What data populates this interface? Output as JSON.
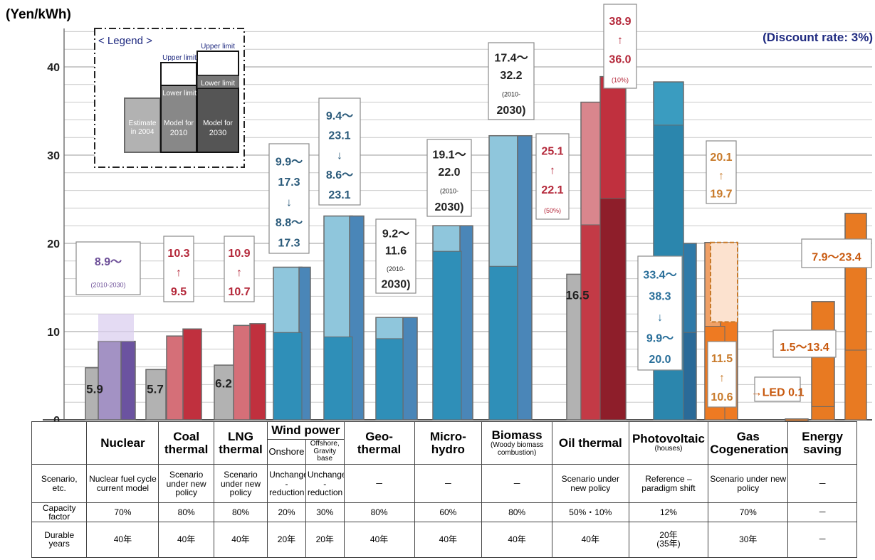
{
  "chart_data": {
    "type": "bar",
    "ylabel": "(Yen/kWh)",
    "annotation": "(Discount rate: 3%)",
    "ylim": [
      0,
      45
    ],
    "yticks": [
      0,
      10,
      20,
      30,
      40
    ],
    "legend": {
      "title": "< Legend >",
      "upper": "Upper limit",
      "lower": "Lower limit",
      "estimate": "Estimate in 2004",
      "model2010": "Model for 2010",
      "model2030": "Model for 2030"
    },
    "bars": [
      {
        "tech": "Nuclear",
        "estimate_2004": 5.9,
        "model_2010": 8.9,
        "model_2030": 8.9
      },
      {
        "tech": "Coal thermal",
        "estimate_2004": 5.7,
        "model_2010": [
          9.5
        ],
        "model_2030": [
          10.3
        ]
      },
      {
        "tech": "LNG thermal",
        "estimate_2004": 6.2,
        "model_2010": [
          10.7
        ],
        "model_2030": [
          10.9
        ]
      },
      {
        "tech": "Wind power Onshore",
        "model_2010": [
          9.9,
          17.3
        ],
        "model_2030": [
          8.8,
          17.3
        ]
      },
      {
        "tech": "Wind power Offshore",
        "model_2010": [
          9.4,
          23.1
        ],
        "model_2030": [
          8.6,
          23.1
        ]
      },
      {
        "tech": "Geothermal",
        "model_2010": [
          9.2,
          11.6
        ],
        "model_2030": [
          9.2,
          11.6
        ]
      },
      {
        "tech": "Micro-hydro",
        "model_2010": [
          19.1,
          22.0
        ],
        "model_2030": [
          19.1,
          22.0
        ]
      },
      {
        "tech": "Biomass",
        "model_2010": [
          17.4,
          32.2
        ],
        "model_2030": [
          17.4,
          32.2
        ]
      },
      {
        "tech": "Oil thermal",
        "estimate_2004": 16.5,
        "model_2010": [
          22.1,
          36.0
        ],
        "model_2030": [
          25.1,
          38.9
        ]
      },
      {
        "tech": "Photovoltaic",
        "model_2010": [
          33.4,
          38.3
        ],
        "model_2030": [
          9.9,
          20.0
        ]
      },
      {
        "tech": "Gas Cogeneration",
        "model_2010": [
          10.6,
          19.7
        ],
        "model_2030": [
          11.5,
          20.1
        ]
      },
      {
        "tech": "Energy saving",
        "values": [
          0.1,
          1.5,
          13.4,
          7.9,
          23.4
        ]
      }
    ],
    "value_labels": [
      {
        "key": "nuc",
        "lines": [
          "8.9～",
          "(2010-2030)"
        ],
        "color": "#6d4f98"
      },
      {
        "key": "coal",
        "lines": [
          "10.3",
          "↑",
          "9.5"
        ],
        "color": "#b4283a"
      },
      {
        "key": "lng",
        "lines": [
          "10.9",
          "↑",
          "10.7"
        ],
        "color": "#b4283a"
      },
      {
        "key": "wind1",
        "lines": [
          "9.9～",
          "17.3",
          "↓",
          "8.8～",
          "17.3"
        ],
        "color": "#2a5a7a"
      },
      {
        "key": "wind2",
        "lines": [
          "9.4～",
          "23.1",
          "↓",
          "8.6～",
          "23.1"
        ],
        "color": "#2a5a7a"
      },
      {
        "key": "geo",
        "lines": [
          "9.2～",
          "11.6",
          "(2010-",
          "2030)"
        ],
        "color": "#222222"
      },
      {
        "key": "hydro",
        "lines": [
          "19.1～",
          "22.0",
          "(2010-",
          "2030)"
        ],
        "color": "#222222"
      },
      {
        "key": "bio",
        "lines": [
          "17.4～",
          "32.2",
          "(2010-",
          "2030)"
        ],
        "color": "#222222"
      },
      {
        "key": "oil1",
        "lines": [
          "25.1",
          "↑",
          "22.1",
          "(50%)"
        ],
        "color": "#b4283a"
      },
      {
        "key": "oil2",
        "lines": [
          "38.9",
          "↑",
          "36.0",
          "(10%)"
        ],
        "color": "#b4283a"
      },
      {
        "key": "pv",
        "lines": [
          "33.4～",
          "38.3",
          "↓",
          "9.9～",
          "20.0"
        ],
        "color": "#2a6f9a"
      },
      {
        "key": "gas1",
        "lines": [
          "20.1",
          "↑",
          "19.7"
        ],
        "color": "#c87a2a"
      },
      {
        "key": "gas2",
        "lines": [
          "11.5",
          "↑",
          "10.6"
        ],
        "color": "#c87a2a"
      },
      {
        "key": "es1",
        "lines": [
          "→LED 0.1"
        ],
        "color": "#c85a10"
      },
      {
        "key": "es2",
        "lines": [
          "1.5～13.4"
        ],
        "color": "#c85a10"
      },
      {
        "key": "es3",
        "lines": [
          "7.9～23.4"
        ],
        "color": "#c85a10"
      },
      {
        "key": "v59",
        "lines": [
          "5.9"
        ],
        "color": "#222222"
      },
      {
        "key": "v57",
        "lines": [
          "5.7"
        ],
        "color": "#222222"
      },
      {
        "key": "v62",
        "lines": [
          "6.2"
        ],
        "color": "#222222"
      },
      {
        "key": "v165",
        "lines": [
          "16.5"
        ],
        "color": "#222222"
      }
    ]
  },
  "table": {
    "headers": {
      "nuclear": "Nuclear",
      "coal": "Coal thermal",
      "lng": "LNG thermal",
      "wind": "Wind power",
      "onshore": "Onshore",
      "offshore": "Offshore, Gravity base",
      "geo": "Geo-thermal",
      "hydro": "Micro-hydro",
      "biomass": "Biomass",
      "biomass_sub": "(Woody biomass combustion)",
      "oil": "Oil thermal",
      "pv": "Photovoltaic",
      "pv_sub": "(houses)",
      "gas": "Gas Cogeneration",
      "es": "Energy saving"
    },
    "scenario_label": "Scenario, etc.",
    "scenario": [
      "Nuclear fuel cycle current model",
      "Scenario under new policy",
      "Scenario under new policy",
      "Unchanged -reduction",
      "Unchanged -reduction",
      "－",
      "－",
      "－",
      "Scenario under new policy",
      "Reference – paradigm shift",
      "Scenario under new policy",
      "－"
    ],
    "capacity_label": "Capacity factor",
    "capacity": [
      "70%",
      "80%",
      "80%",
      "20%",
      "30%",
      "80%",
      "60%",
      "80%",
      "50%・10%",
      "12%",
      "70%",
      "－"
    ],
    "durable_label": "Durable years",
    "durable": [
      "40年",
      "40年",
      "40年",
      "20年",
      "20年",
      "40年",
      "40年",
      "40年",
      "40年",
      "20年 (35年)",
      "30年",
      "－"
    ]
  }
}
